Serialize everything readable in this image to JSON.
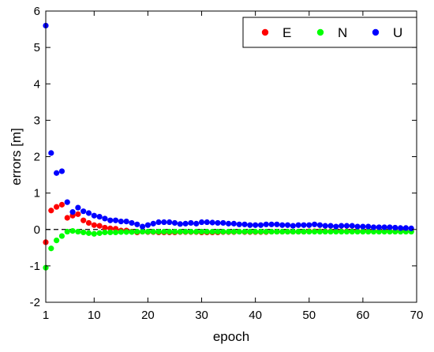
{
  "chart_data": {
    "type": "scatter",
    "xlabel": "epoch",
    "ylabel": "errors [m]",
    "xlim": [
      1,
      70
    ],
    "ylim": [
      -2,
      6
    ],
    "xticks": [
      1,
      10,
      20,
      30,
      40,
      50,
      60,
      70
    ],
    "yticks": [
      -2,
      -1,
      0,
      1,
      2,
      3,
      4,
      5,
      6
    ],
    "reference_line": 0,
    "grid": false,
    "legend_position": "top-right",
    "series": [
      {
        "name": "E",
        "color": "#ff0000",
        "x": [
          1,
          2,
          3,
          4,
          5,
          6,
          7,
          8,
          9,
          10,
          11,
          12,
          13,
          14,
          15,
          16,
          17,
          18,
          19,
          20,
          21,
          22,
          23,
          24,
          25,
          26,
          27,
          28,
          29,
          30,
          31,
          32,
          33,
          34,
          35,
          36,
          37,
          38,
          39,
          40,
          41,
          42,
          43,
          44,
          45,
          46,
          47,
          48,
          49,
          50,
          51,
          52,
          53,
          54,
          55,
          56,
          57,
          58,
          59,
          60,
          61,
          62,
          63,
          64,
          65,
          66,
          67,
          68,
          69
        ],
        "y": [
          -0.35,
          0.52,
          0.62,
          0.68,
          0.32,
          0.38,
          0.42,
          0.25,
          0.18,
          0.12,
          0.1,
          0.05,
          0.03,
          0.02,
          -0.03,
          -0.03,
          -0.06,
          -0.08,
          -0.06,
          -0.07,
          -0.07,
          -0.08,
          -0.08,
          -0.08,
          -0.08,
          -0.07,
          -0.07,
          -0.07,
          -0.07,
          -0.08,
          -0.08,
          -0.08,
          -0.08,
          -0.07,
          -0.07,
          -0.07,
          -0.06,
          -0.07,
          -0.07,
          -0.07,
          -0.07,
          -0.07,
          -0.06,
          -0.06,
          -0.06,
          -0.06,
          -0.06,
          -0.06,
          -0.06,
          -0.05,
          -0.05,
          -0.05,
          -0.05,
          -0.05,
          -0.05,
          -0.05,
          -0.05,
          -0.05,
          -0.05,
          -0.05,
          -0.05,
          -0.05,
          -0.05,
          -0.05,
          -0.05,
          -0.05,
          -0.05,
          -0.05,
          -0.05
        ]
      },
      {
        "name": "N",
        "color": "#00ff00",
        "x": [
          1,
          2,
          3,
          4,
          5,
          6,
          7,
          8,
          9,
          10,
          11,
          12,
          13,
          14,
          15,
          16,
          17,
          18,
          19,
          20,
          21,
          22,
          23,
          24,
          25,
          26,
          27,
          28,
          29,
          30,
          31,
          32,
          33,
          34,
          35,
          36,
          37,
          38,
          39,
          40,
          41,
          42,
          43,
          44,
          45,
          46,
          47,
          48,
          49,
          50,
          51,
          52,
          53,
          54,
          55,
          56,
          57,
          58,
          59,
          60,
          61,
          62,
          63,
          64,
          65,
          66,
          67,
          68,
          69
        ],
        "y": [
          -1.05,
          -0.52,
          -0.3,
          -0.18,
          -0.06,
          -0.04,
          -0.06,
          -0.08,
          -0.1,
          -0.12,
          -0.1,
          -0.08,
          -0.08,
          -0.08,
          -0.07,
          -0.07,
          -0.07,
          -0.06,
          -0.06,
          -0.06,
          -0.06,
          -0.06,
          -0.06,
          -0.06,
          -0.06,
          -0.06,
          -0.06,
          -0.06,
          -0.06,
          -0.06,
          -0.06,
          -0.06,
          -0.06,
          -0.06,
          -0.06,
          -0.06,
          -0.06,
          -0.06,
          -0.06,
          -0.06,
          -0.06,
          -0.06,
          -0.06,
          -0.06,
          -0.06,
          -0.06,
          -0.06,
          -0.06,
          -0.06,
          -0.06,
          -0.06,
          -0.06,
          -0.06,
          -0.06,
          -0.06,
          -0.06,
          -0.06,
          -0.06,
          -0.06,
          -0.06,
          -0.06,
          -0.06,
          -0.06,
          -0.06,
          -0.06,
          -0.06,
          -0.06,
          -0.06,
          -0.06
        ]
      },
      {
        "name": "U",
        "color": "#0000ff",
        "x": [
          1,
          2,
          3,
          4,
          5,
          6,
          7,
          8,
          9,
          10,
          11,
          12,
          13,
          14,
          15,
          16,
          17,
          18,
          19,
          20,
          21,
          22,
          23,
          24,
          25,
          26,
          27,
          28,
          29,
          30,
          31,
          32,
          33,
          34,
          35,
          36,
          37,
          38,
          39,
          40,
          41,
          42,
          43,
          44,
          45,
          46,
          47,
          48,
          49,
          50,
          51,
          52,
          53,
          54,
          55,
          56,
          57,
          58,
          59,
          60,
          61,
          62,
          63,
          64,
          65,
          66,
          67,
          68,
          69
        ],
        "y": [
          5.6,
          2.1,
          1.55,
          1.6,
          0.75,
          0.48,
          0.6,
          0.5,
          0.45,
          0.38,
          0.35,
          0.3,
          0.25,
          0.25,
          0.22,
          0.22,
          0.18,
          0.14,
          0.08,
          0.12,
          0.16,
          0.2,
          0.2,
          0.2,
          0.18,
          0.15,
          0.16,
          0.18,
          0.16,
          0.2,
          0.2,
          0.19,
          0.18,
          0.18,
          0.16,
          0.16,
          0.14,
          0.14,
          0.12,
          0.12,
          0.12,
          0.14,
          0.14,
          0.14,
          0.12,
          0.12,
          0.1,
          0.12,
          0.12,
          0.12,
          0.14,
          0.12,
          0.1,
          0.1,
          0.08,
          0.1,
          0.1,
          0.1,
          0.08,
          0.08,
          0.08,
          0.06,
          0.06,
          0.06,
          0.06,
          0.05,
          0.04,
          0.04,
          0.03
        ]
      }
    ]
  }
}
